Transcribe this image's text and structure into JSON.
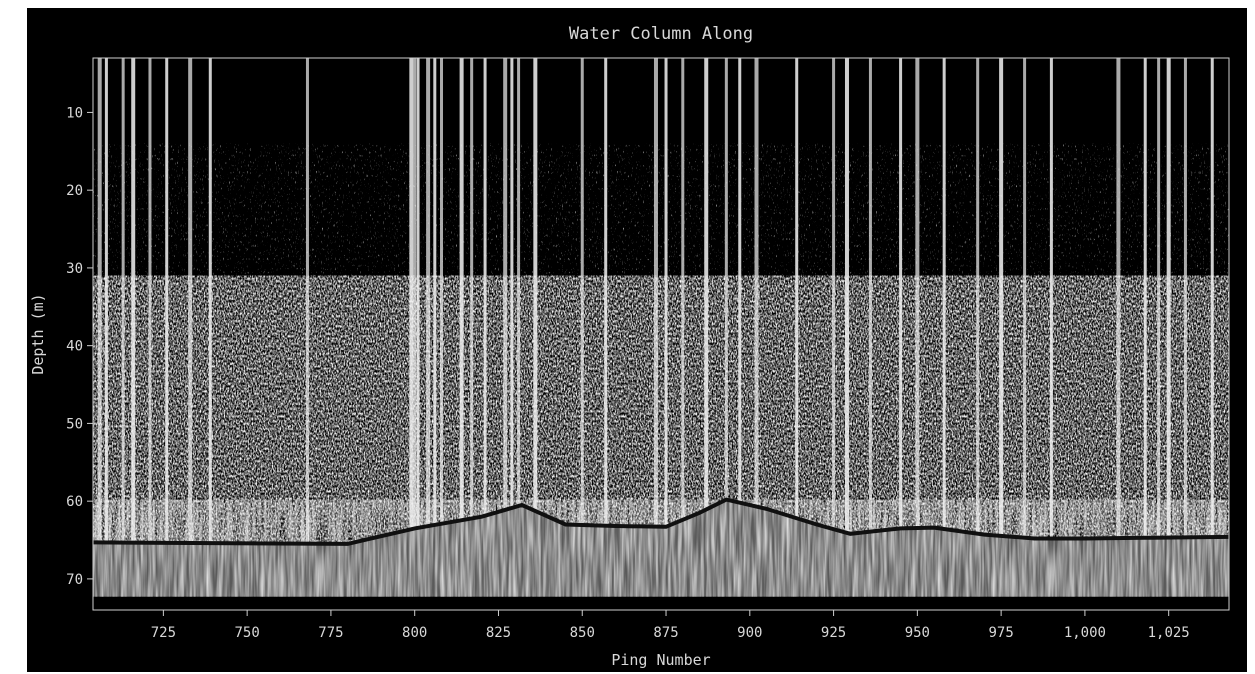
{
  "chart_data": {
    "type": "heatmap",
    "title": "Water Column Along",
    "xlabel": "Ping Number",
    "ylabel": "Depth (m)",
    "x_range": [
      704,
      1043
    ],
    "y_range": [
      3,
      74
    ],
    "y_inverted": true,
    "x_ticks": [
      725,
      750,
      775,
      800,
      825,
      850,
      875,
      900,
      925,
      950,
      975,
      1000,
      1025
    ],
    "x_tick_labels": [
      "725",
      "750",
      "775",
      "800",
      "825",
      "850",
      "875",
      "900",
      "925",
      "950",
      "975",
      "1,000",
      "1,025"
    ],
    "y_ticks": [
      10,
      20,
      30,
      40,
      50,
      60,
      70
    ],
    "y_tick_labels": [
      "10",
      "20",
      "30",
      "40",
      "50",
      "60",
      "70"
    ],
    "colormap": "grayscale",
    "background_color": "#000000",
    "seafloor_depth": [
      [
        704,
        65.3
      ],
      [
        780,
        65.5
      ],
      [
        800,
        63.5
      ],
      [
        820,
        62.0
      ],
      [
        832,
        60.5
      ],
      [
        845,
        63.0
      ],
      [
        860,
        63.2
      ],
      [
        875,
        63.3
      ],
      [
        885,
        61.5
      ],
      [
        893,
        59.8
      ],
      [
        905,
        61.0
      ],
      [
        920,
        63.0
      ],
      [
        930,
        64.2
      ],
      [
        945,
        63.5
      ],
      [
        955,
        63.4
      ],
      [
        970,
        64.3
      ],
      [
        985,
        64.8
      ],
      [
        1000,
        64.8
      ],
      [
        1020,
        64.7
      ],
      [
        1043,
        64.6
      ]
    ],
    "noise_spike_pings": [
      706,
      708,
      713,
      716,
      721,
      726,
      733,
      739,
      768,
      799,
      800,
      801,
      804,
      806,
      808,
      814,
      817,
      821,
      827,
      829,
      831,
      836,
      850,
      857,
      872,
      875,
      880,
      887,
      893,
      897,
      902,
      914,
      925,
      929,
      936,
      945,
      950,
      958,
      968,
      975,
      982,
      990,
      1010,
      1018,
      1022,
      1025,
      1030,
      1038
    ]
  }
}
